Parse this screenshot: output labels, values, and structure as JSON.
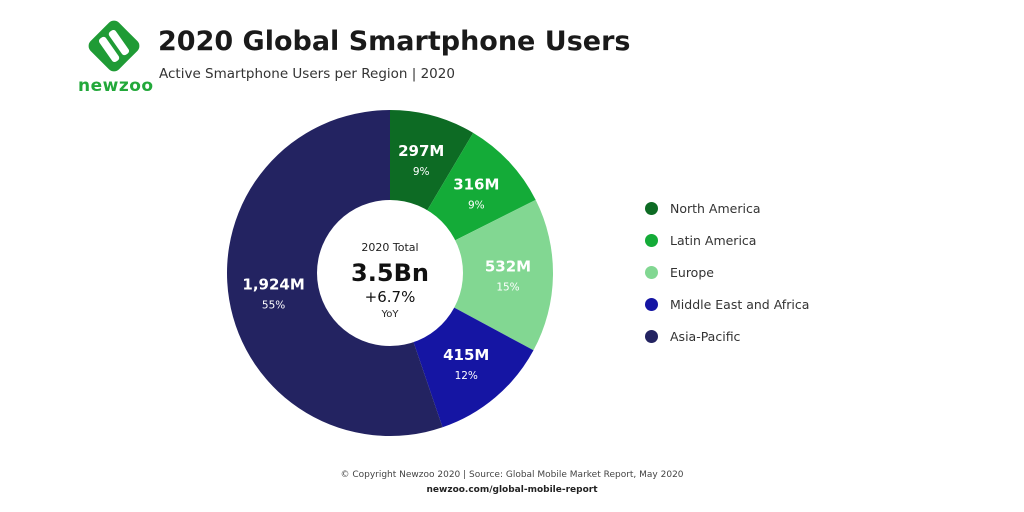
{
  "brand": {
    "logo_text": "newzoo",
    "colors": {
      "green": "#22a83a",
      "dark_green": "#0d6b24"
    }
  },
  "header": {
    "title": "2020 Global Smartphone Users",
    "subtitle": "Active Smartphone Users per Region | 2020"
  },
  "center": {
    "label": "2020 Total",
    "value": "3.5Bn",
    "growth": "+6.7%",
    "growth_label": "YoY"
  },
  "chart_data": {
    "type": "pie",
    "variant": "donut",
    "legend_position": "right",
    "categories": [
      "North America",
      "Latin America",
      "Europe",
      "Middle East and Africa",
      "Asia-Pacific"
    ],
    "values": [
      297,
      316,
      532,
      415,
      1924
    ],
    "value_labels": [
      "297M",
      "316M",
      "532M",
      "415M",
      "1,924M"
    ],
    "percent_labels": [
      "9%",
      "9%",
      "15%",
      "12%",
      "55%"
    ],
    "colors": [
      "#0d6b24",
      "#14ab38",
      "#82d792",
      "#1515a3",
      "#232361"
    ]
  },
  "footer": {
    "copyright": "© Copyright Newzoo 2020 | Source: Global Mobile Market Report, May 2020",
    "url": "newzoo.com/global-mobile-report"
  }
}
